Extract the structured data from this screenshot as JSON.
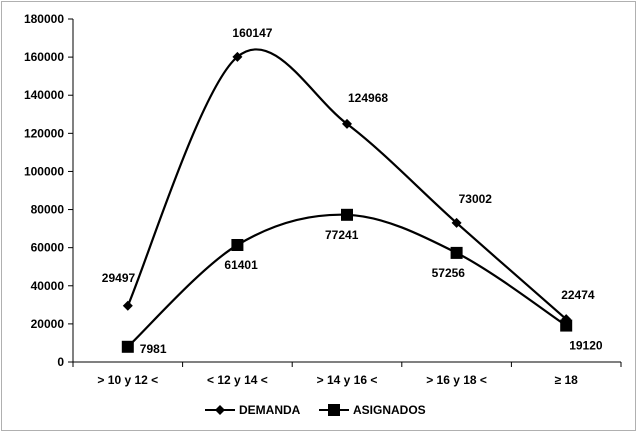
{
  "chart_data": {
    "type": "line",
    "title": "",
    "xlabel": "",
    "ylabel": "",
    "categories": [
      "> 10 y 12 <",
      "< 12 y 14 <",
      "> 14 y 16 <",
      "> 16 y 18 <",
      "≥ 18"
    ],
    "ylim": [
      0,
      180000
    ],
    "yticks": [
      "0",
      "20000",
      "40000",
      "60000",
      "80000",
      "100000",
      "120000",
      "140000",
      "160000",
      "180000"
    ],
    "smoothed": true,
    "grid": false,
    "legend_position": "bottom",
    "series": [
      {
        "name": "DEMANDA",
        "marker": "diamond",
        "color": "#000000",
        "values": [
          29497,
          160147,
          124968,
          73002,
          22474
        ],
        "labels": [
          "29497",
          "160147",
          "124968",
          "73002",
          "22474"
        ]
      },
      {
        "name": "ASIGNADOS",
        "marker": "square",
        "color": "#000000",
        "values": [
          7981,
          61401,
          77241,
          57256,
          19120
        ],
        "labels": [
          "7981",
          "61401",
          "77241",
          "57256",
          "19120"
        ]
      }
    ]
  }
}
